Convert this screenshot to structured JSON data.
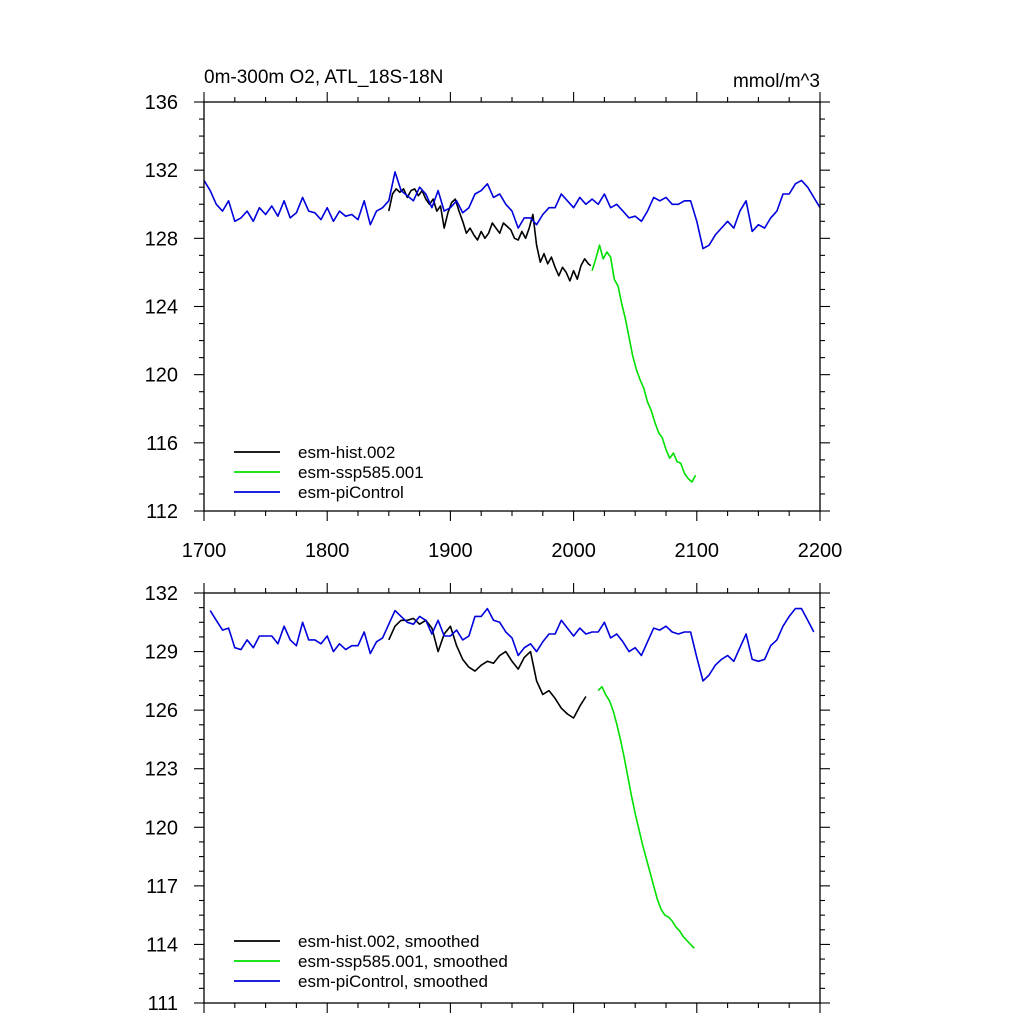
{
  "chart_data": [
    {
      "type": "line",
      "title": "0m-300m O2, ATL_18S-18N",
      "units": "mmol/m^3",
      "xlabel": "",
      "ylabel": "",
      "xlim": [
        1700,
        2200
      ],
      "ylim": [
        112,
        136
      ],
      "x_ticks": [
        1700,
        1800,
        1900,
        2000,
        2100,
        2200
      ],
      "x_tick_labels": [
        "1700",
        "1800",
        "1900",
        "2000",
        "2100",
        "2200"
      ],
      "y_ticks": [
        112,
        116,
        120,
        124,
        128,
        132,
        136
      ],
      "y_tick_labels": [
        "112",
        "116",
        "120",
        "124",
        "128",
        "132",
        "136"
      ],
      "grid": false,
      "legend_position": "bottom-left",
      "series": [
        {
          "name": "esm-hist.002",
          "color": "#000000",
          "x": [
            1850,
            1853,
            1856,
            1859,
            1862,
            1865,
            1868,
            1871,
            1874,
            1877,
            1880,
            1883,
            1886,
            1889,
            1892,
            1895,
            1898,
            1901,
            1904,
            1907,
            1910,
            1913,
            1916,
            1919,
            1922,
            1925,
            1928,
            1931,
            1934,
            1937,
            1940,
            1943,
            1946,
            1949,
            1952,
            1955,
            1958,
            1961,
            1964,
            1967,
            1970,
            1973,
            1976,
            1979,
            1982,
            1985,
            1988,
            1991,
            1994,
            1997,
            2000,
            2003,
            2006,
            2009,
            2012,
            2014
          ],
          "values": [
            129.6,
            130.6,
            130.9,
            130.7,
            130.9,
            130.4,
            130.8,
            130.9,
            130.5,
            130.8,
            130.3,
            130.0,
            130.3,
            129.6,
            129.9,
            128.6,
            129.5,
            130.1,
            130.3,
            129.6,
            129.0,
            128.3,
            128.6,
            128.2,
            127.9,
            128.4,
            128.0,
            128.3,
            128.9,
            128.6,
            128.3,
            128.9,
            128.7,
            128.5,
            128.0,
            127.9,
            128.4,
            128.0,
            128.6,
            129.4,
            127.6,
            126.6,
            127.1,
            126.5,
            126.9,
            126.3,
            125.8,
            126.3,
            126.0,
            125.5,
            126.1,
            125.6,
            126.4,
            126.8,
            126.5,
            126.4
          ]
        },
        {
          "name": "esm-ssp585.001",
          "color": "#00e000",
          "x": [
            2015,
            2018,
            2021,
            2024,
            2027,
            2030,
            2033,
            2036,
            2039,
            2042,
            2045,
            2048,
            2051,
            2054,
            2057,
            2060,
            2063,
            2066,
            2069,
            2072,
            2075,
            2078,
            2081,
            2084,
            2087,
            2090,
            2093,
            2096,
            2099
          ],
          "values": [
            126.1,
            126.8,
            127.6,
            126.8,
            127.2,
            126.9,
            125.6,
            125.2,
            124.2,
            123.3,
            122.2,
            121.1,
            120.3,
            119.7,
            119.2,
            118.4,
            117.9,
            117.2,
            116.6,
            116.3,
            115.6,
            115.1,
            115.4,
            114.9,
            114.8,
            114.2,
            113.9,
            113.7,
            114.1
          ]
        },
        {
          "name": "esm-piControl",
          "color": "#0000dd",
          "x": [
            1700,
            1705,
            1710,
            1715,
            1720,
            1725,
            1730,
            1735,
            1740,
            1745,
            1750,
            1755,
            1760,
            1765,
            1770,
            1775,
            1780,
            1785,
            1790,
            1795,
            1800,
            1805,
            1810,
            1815,
            1820,
            1825,
            1830,
            1835,
            1840,
            1845,
            1850,
            1855,
            1860,
            1865,
            1870,
            1875,
            1880,
            1885,
            1890,
            1895,
            1900,
            1905,
            1910,
            1915,
            1920,
            1925,
            1930,
            1935,
            1940,
            1945,
            1950,
            1955,
            1960,
            1965,
            1970,
            1975,
            1980,
            1985,
            1990,
            1995,
            2000,
            2005,
            2010,
            2015,
            2020,
            2025,
            2030,
            2035,
            2040,
            2045,
            2050,
            2055,
            2060,
            2065,
            2070,
            2075,
            2080,
            2085,
            2090,
            2095,
            2100,
            2105,
            2110,
            2115,
            2120,
            2125,
            2130,
            2135,
            2140,
            2145,
            2150,
            2155,
            2160,
            2165,
            2170,
            2175,
            2180,
            2185,
            2190,
            2195,
            2200
          ],
          "values": [
            131.4,
            130.8,
            130.0,
            129.6,
            130.2,
            129.0,
            129.2,
            129.6,
            129.0,
            129.8,
            129.4,
            129.9,
            129.3,
            130.2,
            129.2,
            129.5,
            130.4,
            129.6,
            129.5,
            129.1,
            129.8,
            129.0,
            129.6,
            129.3,
            129.4,
            129.1,
            130.2,
            128.8,
            129.6,
            129.8,
            130.2,
            131.9,
            130.8,
            130.5,
            130.2,
            131.0,
            130.6,
            129.8,
            130.8,
            129.6,
            129.8,
            130.2,
            129.5,
            129.8,
            130.6,
            130.8,
            131.2,
            130.4,
            130.6,
            130.0,
            129.6,
            128.6,
            129.2,
            129.2,
            128.8,
            129.4,
            129.8,
            129.8,
            130.6,
            130.2,
            129.8,
            130.4,
            130.0,
            130.3,
            130.0,
            130.6,
            129.8,
            130.0,
            129.6,
            129.2,
            129.3,
            129.0,
            129.6,
            130.4,
            130.2,
            130.4,
            130.0,
            130.0,
            130.2,
            130.2,
            129.0,
            127.4,
            127.6,
            128.2,
            128.6,
            129.0,
            128.6,
            129.6,
            130.2,
            128.4,
            128.8,
            128.6,
            129.2,
            129.6,
            130.6,
            130.6,
            131.2,
            131.4,
            131.0,
            130.4,
            129.8
          ]
        }
      ]
    },
    {
      "type": "line",
      "title": "",
      "xlabel": "",
      "ylabel": "",
      "xlim": [
        1700,
        2200
      ],
      "ylim": [
        111,
        132
      ],
      "x_ticks": [
        1700,
        1800,
        1900,
        2000,
        2100,
        2200
      ],
      "y_ticks": [
        111,
        114,
        117,
        120,
        123,
        126,
        129,
        132
      ],
      "y_tick_labels": [
        "111",
        "114",
        "117",
        "120",
        "123",
        "126",
        "129",
        "132"
      ],
      "grid": false,
      "legend_position": "bottom-left",
      "series": [
        {
          "name": "esm-hist.002, smoothed",
          "color": "#000000",
          "x": [
            1850,
            1855,
            1860,
            1865,
            1870,
            1875,
            1880,
            1885,
            1890,
            1895,
            1900,
            1905,
            1910,
            1915,
            1920,
            1925,
            1930,
            1935,
            1940,
            1945,
            1950,
            1955,
            1960,
            1965,
            1970,
            1975,
            1980,
            1985,
            1990,
            1995,
            2000,
            2005,
            2010
          ],
          "values": [
            129.6,
            130.3,
            130.6,
            130.6,
            130.7,
            130.4,
            130.6,
            130.2,
            129.0,
            129.9,
            130.3,
            129.3,
            128.6,
            128.2,
            128.0,
            128.3,
            128.5,
            128.4,
            128.8,
            129.0,
            128.5,
            128.1,
            128.7,
            129.0,
            127.5,
            126.8,
            127.0,
            126.6,
            126.1,
            125.8,
            125.6,
            126.2,
            126.7
          ]
        },
        {
          "name": "esm-ssp585.001, smoothed",
          "color": "#00e000",
          "x": [
            2020,
            2023,
            2026,
            2029,
            2032,
            2035,
            2038,
            2041,
            2044,
            2047,
            2050,
            2053,
            2056,
            2059,
            2062,
            2065,
            2068,
            2071,
            2074,
            2077,
            2080,
            2083,
            2086,
            2089,
            2092,
            2095,
            2098
          ],
          "values": [
            127.0,
            127.2,
            126.8,
            126.5,
            126.0,
            125.3,
            124.5,
            123.6,
            122.6,
            121.6,
            120.7,
            119.9,
            119.1,
            118.4,
            117.7,
            117.0,
            116.3,
            115.8,
            115.5,
            115.4,
            115.2,
            114.9,
            114.7,
            114.4,
            114.2,
            114.0,
            113.8
          ]
        },
        {
          "name": "esm-piControl, smoothed",
          "color": "#0000dd",
          "x": [
            1705,
            1710,
            1715,
            1720,
            1725,
            1730,
            1735,
            1740,
            1745,
            1750,
            1755,
            1760,
            1765,
            1770,
            1775,
            1780,
            1785,
            1790,
            1795,
            1800,
            1805,
            1810,
            1815,
            1820,
            1825,
            1830,
            1835,
            1840,
            1845,
            1850,
            1855,
            1860,
            1865,
            1870,
            1875,
            1880,
            1885,
            1890,
            1895,
            1900,
            1905,
            1910,
            1915,
            1920,
            1925,
            1930,
            1935,
            1940,
            1945,
            1950,
            1955,
            1960,
            1965,
            1970,
            1975,
            1980,
            1985,
            1990,
            1995,
            2000,
            2005,
            2010,
            2015,
            2020,
            2025,
            2030,
            2035,
            2040,
            2045,
            2050,
            2055,
            2060,
            2065,
            2070,
            2075,
            2080,
            2085,
            2090,
            2095,
            2100,
            2105,
            2110,
            2115,
            2120,
            2125,
            2130,
            2135,
            2140,
            2145,
            2150,
            2155,
            2160,
            2165,
            2170,
            2175,
            2180,
            2185,
            2190,
            2195
          ],
          "values": [
            131.1,
            130.6,
            130.1,
            130.2,
            129.2,
            129.1,
            129.6,
            129.2,
            129.8,
            129.8,
            129.8,
            129.4,
            130.3,
            129.6,
            129.3,
            130.5,
            129.6,
            129.6,
            129.4,
            129.8,
            129.0,
            129.4,
            129.1,
            129.3,
            129.3,
            130.0,
            128.9,
            129.5,
            129.7,
            130.4,
            131.1,
            130.8,
            130.5,
            130.4,
            130.8,
            130.6,
            129.9,
            130.6,
            129.8,
            129.8,
            130.1,
            129.6,
            129.8,
            130.8,
            130.8,
            131.2,
            130.6,
            130.5,
            130.0,
            129.7,
            128.8,
            129.2,
            129.4,
            129.0,
            129.5,
            129.9,
            129.9,
            130.6,
            130.2,
            129.8,
            130.2,
            129.9,
            130.0,
            130.0,
            130.5,
            129.7,
            129.9,
            129.5,
            129.0,
            129.2,
            128.8,
            129.5,
            130.2,
            130.1,
            130.3,
            130.0,
            129.9,
            130.0,
            130.0,
            128.7,
            127.5,
            127.8,
            128.3,
            128.6,
            128.8,
            128.5,
            129.2,
            129.9,
            128.6,
            128.5,
            128.6,
            129.3,
            129.6,
            130.3,
            130.8,
            131.2,
            131.2,
            130.6,
            130.0
          ]
        }
      ]
    }
  ]
}
